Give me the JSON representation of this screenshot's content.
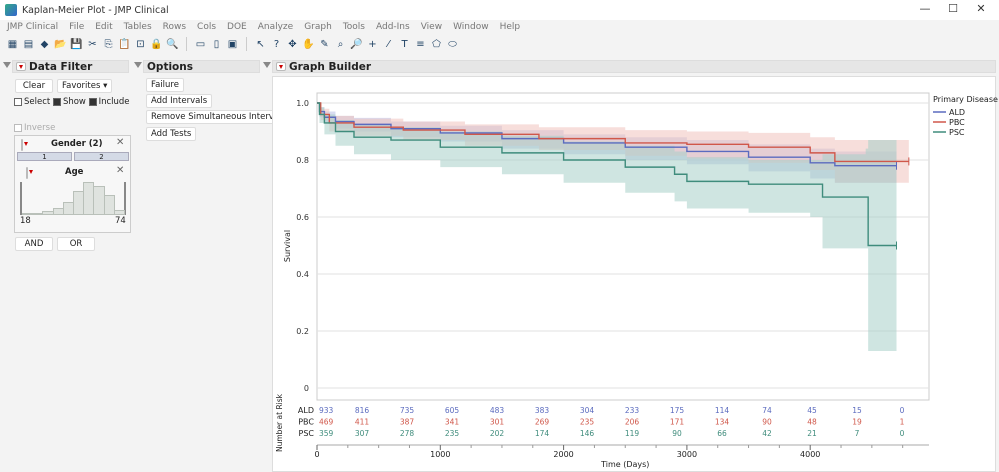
{
  "window": {
    "title": "Kaplan-Meier Plot - JMP Clinical",
    "controls": [
      "—",
      "☐",
      "✕"
    ]
  },
  "menu": [
    "JMP Clinical",
    "File",
    "Edit",
    "Tables",
    "Rows",
    "Cols",
    "DOE",
    "Analyze",
    "Graph",
    "Tools",
    "Add-Ins",
    "View",
    "Window",
    "Help"
  ],
  "toolbar": {
    "groups": [
      [
        "new-table-icon",
        "new-script-icon",
        "python-icon",
        "open-icon",
        "save-icon",
        "cut-icon",
        "copy-icon",
        "paste-icon",
        "formula-icon",
        "lock-icon",
        "search-icon"
      ],
      [
        "report-icon",
        "journal-icon",
        "add-icon"
      ],
      [
        "arrow-icon",
        "help-icon",
        "crosshair-icon",
        "hand-icon",
        "brush-icon",
        "lasso-icon",
        "zoom-icon",
        "plus-icon",
        "line-icon",
        "text-icon",
        "list-icon",
        "polygon-icon",
        "ellipse-icon"
      ]
    ],
    "glyphs": [
      "▦",
      "▤",
      "◆",
      "📂",
      "💾",
      "✂",
      "⎘",
      "📋",
      "⊡",
      "🔒",
      "🔍",
      "▭",
      "▯",
      "▣",
      "↖",
      "?",
      "✥",
      "✋",
      "✎",
      "⌕",
      "🔎",
      "+",
      "⁄",
      "T",
      "≡",
      "⬠",
      "⬭"
    ]
  },
  "data_filter": {
    "title": "Data Filter",
    "clear": "Clear",
    "favorites": "Favorites ▾",
    "select": "Select",
    "show": "Show",
    "include": "Include",
    "inverse": "Inverse",
    "gender": {
      "title": "Gender (2)",
      "levels": [
        "1",
        "2"
      ]
    },
    "age": {
      "title": "Age",
      "min": "18",
      "max": "74",
      "histogram": [
        2,
        4,
        6,
        12,
        22,
        40,
        55,
        48,
        33,
        8
      ]
    },
    "and": "AND",
    "or": "OR"
  },
  "options": {
    "title": "Options",
    "buttons": [
      "Failure",
      "Add Intervals",
      "Remove Simultaneous Intervals",
      "Add Tests"
    ]
  },
  "graph_builder": {
    "title": "Graph Builder"
  },
  "chart_data": {
    "type": "line",
    "ylabel": "Survival",
    "xlabel": "Time (Days)",
    "xlim": [
      0,
      4900
    ],
    "ylim": [
      0,
      1.05
    ],
    "xticks": [
      0,
      1000,
      2000,
      3000,
      4000
    ],
    "yticks": [
      "0",
      "0.2",
      "0.4",
      "0.6",
      "0.8",
      "1.0"
    ],
    "grid": true,
    "legend_placement": "right",
    "legend_title": "Primary Disease",
    "series": [
      {
        "name": "ALD",
        "color": "#5b6bbf",
        "band": "#b8bfe4",
        "time": [
          0,
          20,
          60,
          150,
          300,
          600,
          1000,
          1500,
          2000,
          2500,
          3000,
          3500,
          4000,
          4200,
          4700
        ],
        "survival": [
          1,
          0.97,
          0.95,
          0.935,
          0.925,
          0.91,
          0.895,
          0.875,
          0.86,
          0.845,
          0.83,
          0.81,
          0.79,
          0.78,
          0.78
        ],
        "lower": [
          1,
          0.95,
          0.93,
          0.91,
          0.9,
          0.88,
          0.865,
          0.84,
          0.82,
          0.8,
          0.785,
          0.76,
          0.735,
          0.72,
          0.68
        ],
        "upper": [
          1,
          0.985,
          0.97,
          0.955,
          0.948,
          0.935,
          0.92,
          0.905,
          0.89,
          0.88,
          0.87,
          0.855,
          0.84,
          0.83,
          0.86
        ]
      },
      {
        "name": "PBC",
        "color": "#d0574a",
        "band": "#f0c2bd",
        "time": [
          0,
          30,
          100,
          300,
          700,
          1200,
          1800,
          2500,
          3000,
          3500,
          4000,
          4200,
          4800
        ],
        "survival": [
          1,
          0.96,
          0.93,
          0.915,
          0.905,
          0.89,
          0.875,
          0.86,
          0.855,
          0.845,
          0.825,
          0.795,
          0.795
        ],
        "lower": [
          1,
          0.94,
          0.9,
          0.885,
          0.87,
          0.85,
          0.835,
          0.815,
          0.805,
          0.79,
          0.765,
          0.72,
          0.69
        ],
        "upper": [
          1,
          0.98,
          0.955,
          0.945,
          0.935,
          0.925,
          0.915,
          0.905,
          0.9,
          0.895,
          0.88,
          0.87,
          0.88
        ]
      },
      {
        "name": "PSC",
        "color": "#3f8c7c",
        "band": "#a8cfc8",
        "time": [
          0,
          20,
          60,
          150,
          300,
          600,
          1000,
          1500,
          2000,
          2500,
          2900,
          3000,
          3500,
          4000,
          4100,
          4450,
          4470,
          4700
        ],
        "survival": [
          1,
          0.96,
          0.93,
          0.9,
          0.88,
          0.87,
          0.845,
          0.825,
          0.8,
          0.775,
          0.75,
          0.725,
          0.715,
          0.715,
          0.67,
          0.67,
          0.5,
          0.5
        ],
        "lower": [
          1,
          0.93,
          0.89,
          0.85,
          0.82,
          0.8,
          0.775,
          0.75,
          0.72,
          0.685,
          0.655,
          0.63,
          0.615,
          0.6,
          0.49,
          0.49,
          0.13,
          0.13
        ],
        "upper": [
          1,
          0.985,
          0.96,
          0.94,
          0.925,
          0.915,
          0.9,
          0.885,
          0.865,
          0.85,
          0.83,
          0.81,
          0.8,
          0.8,
          0.82,
          0.84,
          0.87,
          0.87
        ]
      }
    ],
    "at_risk": {
      "label": "Number at Risk",
      "times": [
        0,
        365,
        730,
        1095,
        1460,
        1825,
        2190,
        2555,
        2920,
        3285,
        3650,
        4015,
        4380,
        4745
      ],
      "rows": [
        {
          "name": "ALD",
          "counts": [
            933,
            816,
            735,
            605,
            483,
            383,
            304,
            233,
            175,
            114,
            74,
            45,
            15,
            0
          ]
        },
        {
          "name": "PBC",
          "counts": [
            469,
            411,
            387,
            341,
            301,
            269,
            235,
            206,
            171,
            134,
            90,
            48,
            19,
            1
          ]
        },
        {
          "name": "PSC",
          "counts": [
            359,
            307,
            278,
            235,
            202,
            174,
            146,
            119,
            90,
            66,
            42,
            21,
            7,
            0
          ]
        }
      ]
    }
  }
}
